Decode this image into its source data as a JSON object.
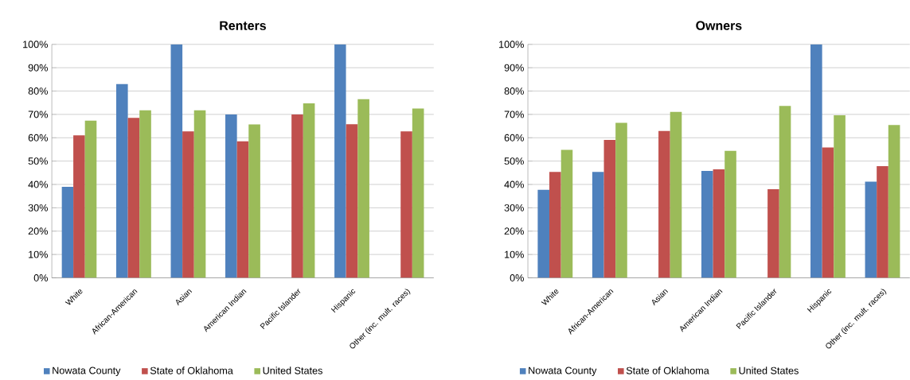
{
  "chart_data": [
    {
      "type": "bar",
      "title": "Renters",
      "categories": [
        "White",
        "African-American",
        "Asian",
        "American Indian",
        "Pacific Islander",
        "Hispanic",
        "Other (inc. mult. races)"
      ],
      "series": [
        {
          "name": "Nowata County",
          "color": "#4f81bd",
          "values": [
            39,
            83,
            100,
            70,
            null,
            100,
            null
          ]
        },
        {
          "name": "State of Oklahoma",
          "color": "#c0504d",
          "values": [
            61,
            68.5,
            62.7,
            58.5,
            70,
            65.8,
            62.7
          ]
        },
        {
          "name": "United States",
          "color": "#9bbb59",
          "values": [
            67.3,
            71.8,
            71.8,
            65.7,
            74.7,
            76.5,
            72.5
          ]
        }
      ],
      "ylim": [
        0,
        100
      ],
      "yticks": [
        {
          "value": 0,
          "label": "0%"
        },
        {
          "value": 10,
          "label": "10%"
        },
        {
          "value": 20,
          "label": "20%"
        },
        {
          "value": 30,
          "label": "30%"
        },
        {
          "value": 40,
          "label": "40%"
        },
        {
          "value": 50,
          "label": "50%"
        },
        {
          "value": 60,
          "label": "60%"
        },
        {
          "value": 70,
          "label": "70%"
        },
        {
          "value": 80,
          "label": "80%"
        },
        {
          "value": 90,
          "label": "90%"
        },
        {
          "value": 100,
          "label": "100%"
        }
      ],
      "grid": "y",
      "legend": "bottom"
    },
    {
      "type": "bar",
      "title": "Owners",
      "categories": [
        "White",
        "African-American",
        "Asian",
        "American Indian",
        "Pacific Islander",
        "Hispanic",
        "Other (inc. mult. races)"
      ],
      "series": [
        {
          "name": "Nowata County",
          "color": "#4f81bd",
          "values": [
            37.7,
            45.4,
            null,
            45.8,
            null,
            100,
            41.2
          ]
        },
        {
          "name": "State of Oklahoma",
          "color": "#c0504d",
          "values": [
            45.4,
            59.1,
            62.9,
            46.5,
            38,
            55.8,
            47.8
          ]
        },
        {
          "name": "United States",
          "color": "#9bbb59",
          "values": [
            54.8,
            66.4,
            71.1,
            54.4,
            73.6,
            69.6,
            65.5
          ]
        }
      ],
      "ylim": [
        0,
        100
      ],
      "yticks": [
        {
          "value": 0,
          "label": "0%"
        },
        {
          "value": 10,
          "label": "10%"
        },
        {
          "value": 20,
          "label": "20%"
        },
        {
          "value": 30,
          "label": "30%"
        },
        {
          "value": 40,
          "label": "40%"
        },
        {
          "value": 50,
          "label": "50%"
        },
        {
          "value": 60,
          "label": "60%"
        },
        {
          "value": 70,
          "label": "70%"
        },
        {
          "value": 80,
          "label": "80%"
        },
        {
          "value": 90,
          "label": "90%"
        },
        {
          "value": 100,
          "label": "100%"
        }
      ],
      "grid": "y",
      "legend": "bottom"
    }
  ]
}
